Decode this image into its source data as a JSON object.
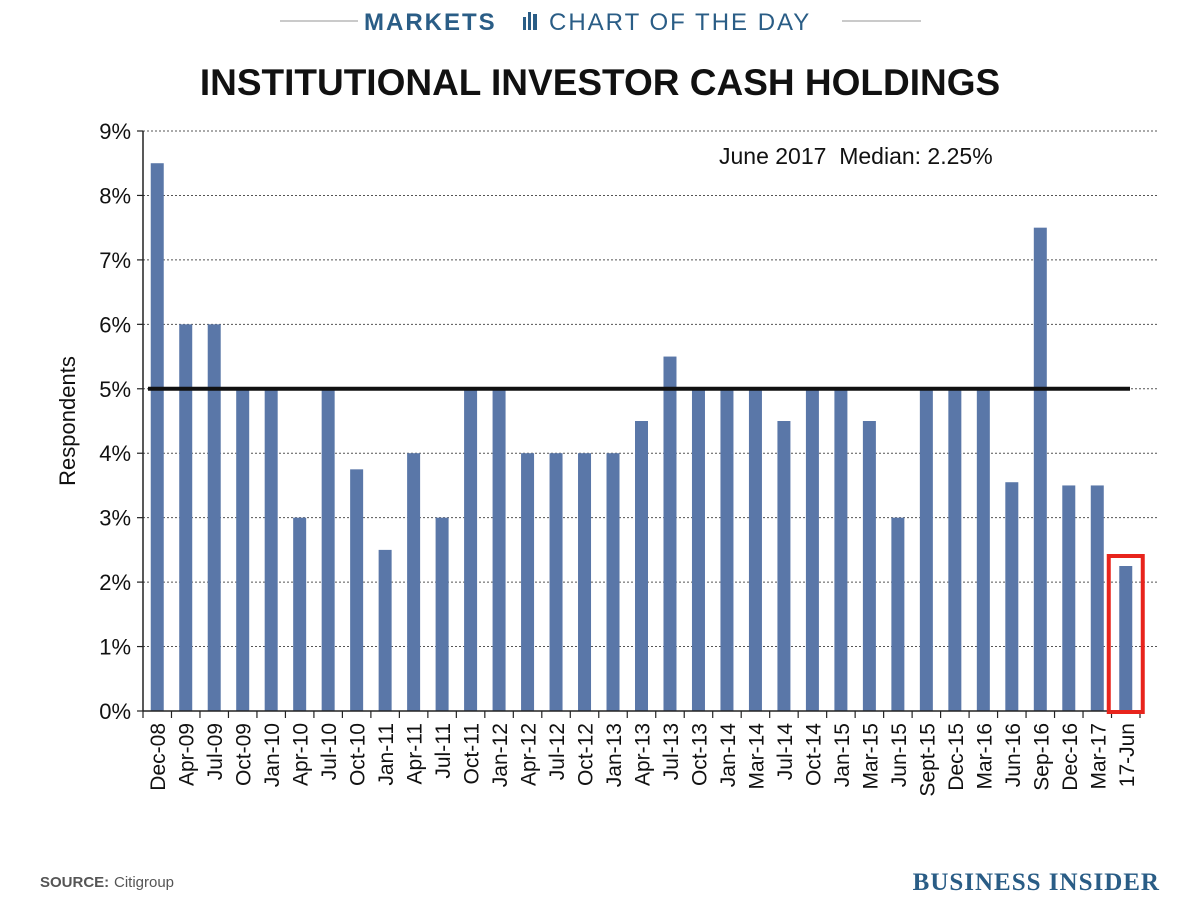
{
  "header": {
    "section": "MARKETS",
    "subtitle": "CHART OF THE DAY"
  },
  "footer": {
    "source_label": "SOURCE:",
    "source_value": "Citigroup",
    "brand": "BUSINESS INSIDER"
  },
  "colors": {
    "bar": "#5a77a8",
    "section": "#2a5d86",
    "subtitle": "#2a5d86",
    "brand": "#2a5d86",
    "highlight": "#e8241c",
    "median_line": "#111111"
  },
  "icons": {
    "section_icon": "bar-chart-icon"
  },
  "chart_data": {
    "type": "bar",
    "title": "INSTITUTIONAL INVESTOR CASH HOLDINGS",
    "xlabel": "",
    "ylabel": "Respondents",
    "ylim": [
      0,
      9
    ],
    "yticks": [
      "0%",
      "1%",
      "2%",
      "3%",
      "4%",
      "5%",
      "6%",
      "7%",
      "8%",
      "9%"
    ],
    "grid": true,
    "annotation": "June 2017  Median: 2.25%",
    "reference_line": {
      "value": 5,
      "label": ""
    },
    "highlight_category": "17-Jun",
    "categories": [
      "Dec-08",
      "Apr-09",
      "Jul-09",
      "Oct-09",
      "Jan-10",
      "Apr-10",
      "Jul-10",
      "Oct-10",
      "Jan-11",
      "Apr-11",
      "Jul-11",
      "Oct-11",
      "Jan-12",
      "Apr-12",
      "Jul-12",
      "Oct-12",
      "Jan-13",
      "Apr-13",
      "Jul-13",
      "Oct-13",
      "Jan-14",
      "Mar-14",
      "Jul-14",
      "Oct-14",
      "Jan-15",
      "Mar-15",
      "Jun-15",
      "Sept-15",
      "Dec-15",
      "Mar-16",
      "Jun-16",
      "Sep-16",
      "Dec-16",
      "Mar-17",
      "17-Jun"
    ],
    "values": [
      8.5,
      6.0,
      6.0,
      5.0,
      5.0,
      3.0,
      5.0,
      3.75,
      2.5,
      4.0,
      3.0,
      5.0,
      5.0,
      4.0,
      4.0,
      4.0,
      4.0,
      4.5,
      5.5,
      5.0,
      5.0,
      5.0,
      4.5,
      5.0,
      5.0,
      4.5,
      3.0,
      5.0,
      5.0,
      5.0,
      3.55,
      7.5,
      3.5,
      3.5,
      2.25
    ]
  }
}
